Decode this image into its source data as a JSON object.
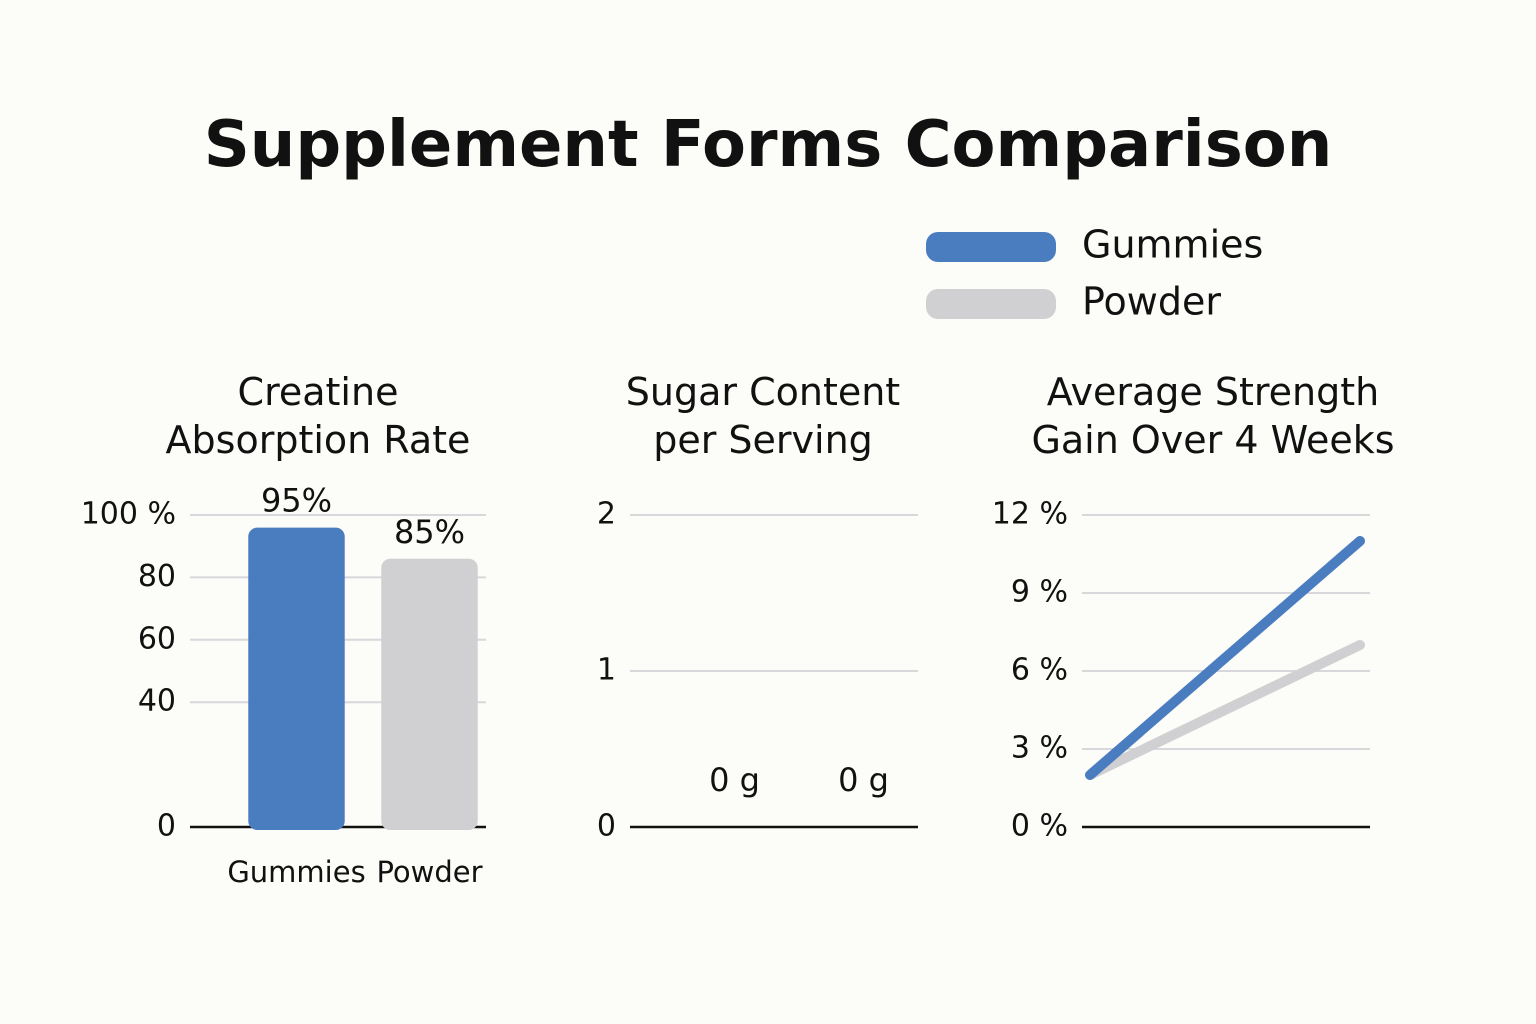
{
  "title": "Supplement Forms Comparison",
  "chart_data": [
    {
      "type": "bar",
      "title": "Creatine Absorption Rate",
      "categories": [
        "Gummies",
        "Powder"
      ],
      "values": [
        95,
        85
      ],
      "value_labels": [
        "95%",
        "85%"
      ],
      "colors": [
        "#4a7cc0",
        "#d0d0d3"
      ],
      "ylim": [
        0,
        100
      ],
      "yticks": [
        0,
        40,
        60,
        80,
        {
          "value": 100,
          "label": "100 %"
        }
      ],
      "grid": true
    },
    {
      "type": "bar",
      "title": "Sugar Content per Serving",
      "categories": [
        null,
        null
      ],
      "values": [
        0,
        0
      ],
      "value_labels": [
        "0 g",
        "0 g"
      ],
      "colors": [
        "#4a7cc0",
        "#d0d0d3"
      ],
      "ylim": [
        0,
        2
      ],
      "yticks": [
        0,
        1,
        2
      ],
      "grid": true
    },
    {
      "type": "line",
      "title": "Average Strength Gain Over 4 Weeks",
      "categories": [
        null,
        null
      ],
      "series": [
        {
          "name": "Gummies",
          "color": "#4a7cc0",
          "values": [
            2,
            11
          ]
        },
        {
          "name": "Powder",
          "color": "#d0d0d3",
          "values": [
            2,
            7
          ]
        }
      ],
      "ylim": [
        0,
        12
      ],
      "yticks": [
        {
          "value": 0,
          "label": "0 %"
        },
        {
          "value": 3,
          "label": "3 %"
        },
        {
          "value": 6,
          "label": "6 %"
        },
        {
          "value": 9,
          "label": "9 %"
        },
        {
          "value": 12,
          "label": "12 %"
        }
      ],
      "grid": true
    }
  ]
}
